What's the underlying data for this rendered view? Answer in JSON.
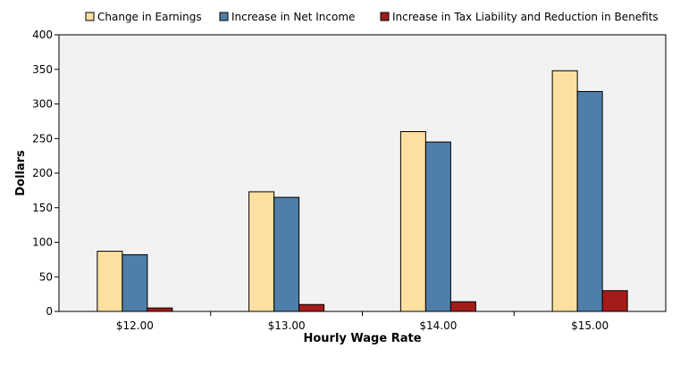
{
  "chart_data": {
    "type": "bar",
    "title": "",
    "xlabel": "Hourly Wage Rate",
    "ylabel": "Dollars",
    "categories": [
      "$12.00",
      "$13.00",
      "$14.00",
      "$15.00"
    ],
    "series": [
      {
        "name": "Change in Earnings",
        "values": [
          87,
          173,
          260,
          348
        ],
        "color": "#fde0a0"
      },
      {
        "name": "Increase in Net Income",
        "values": [
          82,
          165,
          245,
          318
        ],
        "color": "#4f7ea8"
      },
      {
        "name": "Increase in Tax Liability and Reduction in Benefits",
        "values": [
          5,
          10,
          14,
          30
        ],
        "color": "#a51b1b"
      }
    ],
    "ylim": [
      0,
      400
    ],
    "yticks": [
      0,
      50,
      100,
      150,
      200,
      250,
      300,
      350,
      400
    ],
    "grid": false,
    "legend_position": "top",
    "plot_background": "#f2f2f2"
  }
}
